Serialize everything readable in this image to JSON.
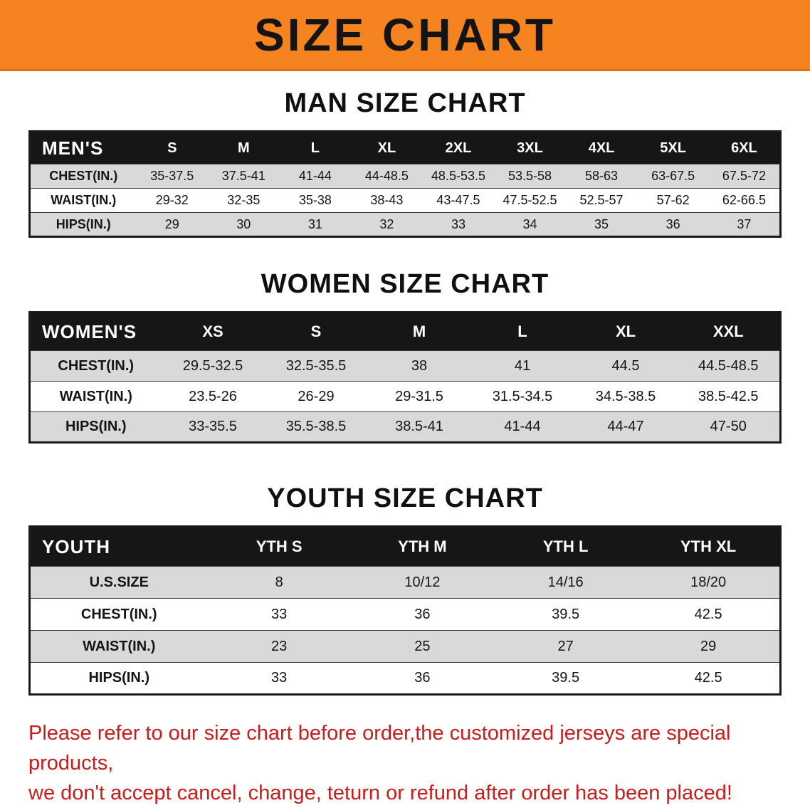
{
  "banner": {
    "title": "SIZE CHART",
    "bg_color": "#f5831f",
    "text_color": "#141414"
  },
  "colors": {
    "table_header_bg": "#161616",
    "row_stripe": "#d9d9d9",
    "footer_text": "#cb1b1b"
  },
  "sections": [
    {
      "heading": "MAN SIZE CHART",
      "table": {
        "header": [
          "MEN'S",
          "S",
          "M",
          "L",
          "XL",
          "2XL",
          "3XL",
          "4XL",
          "5XL",
          "6XL"
        ],
        "rows": [
          [
            "CHEST(IN.)",
            "35-37.5",
            "37.5-41",
            "41-44",
            "44-48.5",
            "48.5-53.5",
            "53.5-58",
            "58-63",
            "63-67.5",
            "67.5-72"
          ],
          [
            "WAIST(IN.)",
            "29-32",
            "32-35",
            "35-38",
            "38-43",
            "43-47.5",
            "47.5-52.5",
            "52.5-57",
            "57-62",
            "62-66.5"
          ],
          [
            "HIPS(IN.)",
            "29",
            "30",
            "31",
            "32",
            "33",
            "34",
            "35",
            "36",
            "37"
          ]
        ]
      }
    },
    {
      "heading": "WOMEN SIZE CHART",
      "table": {
        "header": [
          "WOMEN'S",
          "XS",
          "S",
          "M",
          "L",
          "XL",
          "XXL"
        ],
        "rows": [
          [
            "CHEST(IN.)",
            "29.5-32.5",
            "32.5-35.5",
            "38",
            "41",
            "44.5",
            "44.5-48.5"
          ],
          [
            "WAIST(IN.)",
            "23.5-26",
            "26-29",
            "29-31.5",
            "31.5-34.5",
            "34.5-38.5",
            "38.5-42.5"
          ],
          [
            "HIPS(IN.)",
            "33-35.5",
            "35.5-38.5",
            "38.5-41",
            "41-44",
            "44-47",
            "47-50"
          ]
        ]
      }
    },
    {
      "heading": "YOUTH SIZE CHART",
      "table": {
        "header": [
          "YOUTH",
          "YTH S",
          "YTH M",
          "YTH L",
          "YTH XL"
        ],
        "rows": [
          [
            "U.S.SIZE",
            "8",
            "10/12",
            "14/16",
            "18/20"
          ],
          [
            "CHEST(IN.)",
            "33",
            "36",
            "39.5",
            "42.5"
          ],
          [
            "WAIST(IN.)",
            "23",
            "25",
            "27",
            "29"
          ],
          [
            "HIPS(IN.)",
            "33",
            "36",
            "39.5",
            "42.5"
          ]
        ]
      }
    }
  ],
  "footer": {
    "line1": "Please refer to our size chart before order,the customized jerseys are special products,",
    "line2": "we don't accept cancel, change, teturn or refund after order has been placed!"
  }
}
